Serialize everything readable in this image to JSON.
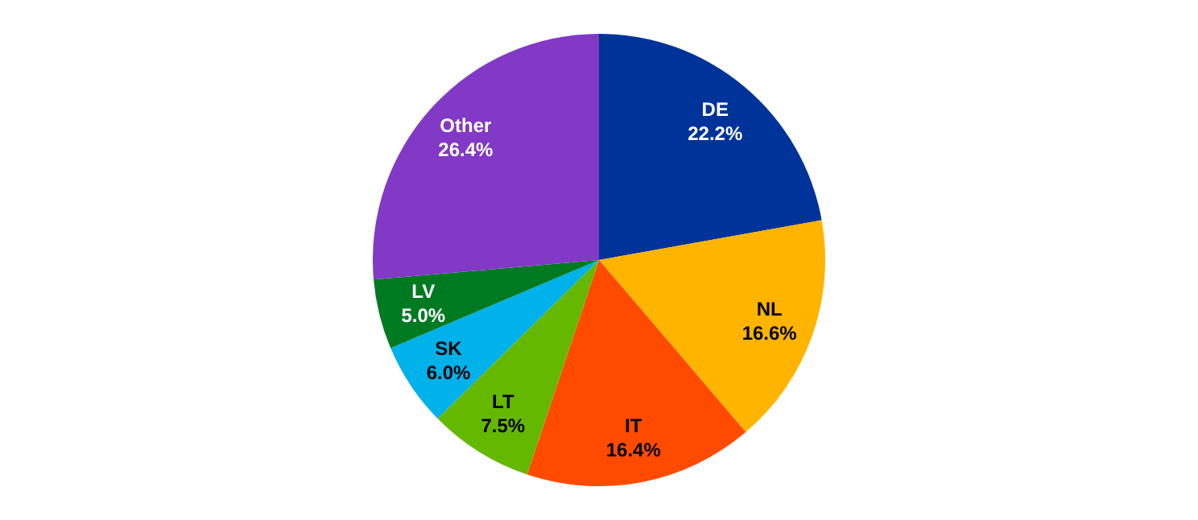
{
  "chart_data": {
    "type": "pie",
    "categories": [
      "DE",
      "NL",
      "IT",
      "LT",
      "SK",
      "LV",
      "Other"
    ],
    "values": [
      22.2,
      16.6,
      16.4,
      7.5,
      6.0,
      5.0,
      26.4
    ],
    "value_labels": [
      "22.2%",
      "16.6%",
      "16.4%",
      "7.5%",
      "6.0%",
      "5.0%",
      "26.4%"
    ],
    "colors": [
      "#003399",
      "#ffb400",
      "#ff4b00",
      "#65b800",
      "#00b1ea",
      "#007a21",
      "#8139c6"
    ],
    "legend": false
  }
}
